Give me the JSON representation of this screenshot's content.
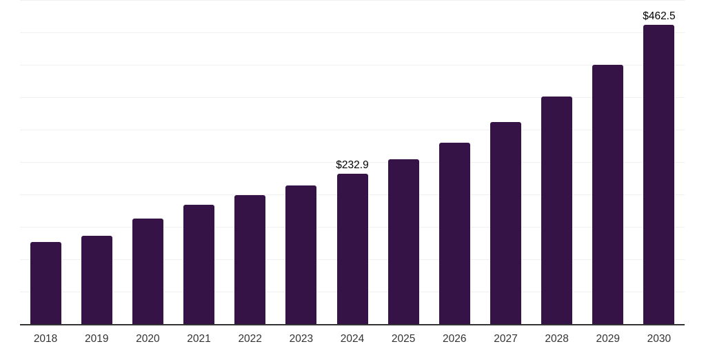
{
  "chart_data": {
    "type": "bar",
    "title": "",
    "xlabel": "",
    "ylabel": "",
    "categories": [
      "2018",
      "2019",
      "2020",
      "2021",
      "2022",
      "2023",
      "2024",
      "2025",
      "2026",
      "2027",
      "2028",
      "2029",
      "2030"
    ],
    "values": [
      128.0,
      137.5,
      164.0,
      185.5,
      200.0,
      215.0,
      232.9,
      255.5,
      281.0,
      313.0,
      352.5,
      401.5,
      462.5
    ],
    "bar_labels": [
      "",
      "",
      "",
      "",
      "",
      "",
      "$232.9",
      "",
      "",
      "",
      "",
      "",
      "$462.5"
    ],
    "ylim": [
      0,
      500
    ],
    "gridline_step": 50,
    "grid": "horizontal",
    "legend_position": "none",
    "y_axis_tick_labels_visible": false,
    "colors": {
      "bar": "#351347",
      "gridline": "#f0f0f0",
      "axis_line": "#333333",
      "tick_label": "#333333",
      "data_label": "#000000",
      "background": "#ffffff"
    }
  }
}
